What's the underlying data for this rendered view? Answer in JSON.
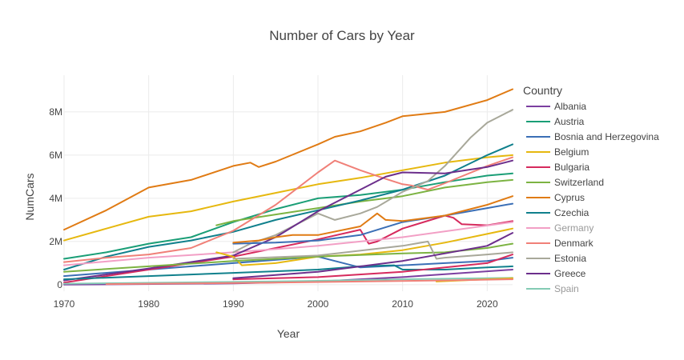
{
  "chart_data": {
    "type": "line",
    "title": "Number of Cars by Year",
    "xlabel": "Year",
    "ylabel": "NumCars",
    "xlim": [
      1970,
      2023
    ],
    "ylim": [
      -300000,
      9700000
    ],
    "x_ticks": [
      {
        "v": 1970,
        "label": "1970"
      },
      {
        "v": 1980,
        "label": "1980"
      },
      {
        "v": 1990,
        "label": "1990"
      },
      {
        "v": 2000,
        "label": "2000"
      },
      {
        "v": 2010,
        "label": "2010"
      },
      {
        "v": 2020,
        "label": "2020"
      }
    ],
    "y_ticks": [
      {
        "v": 0,
        "label": "0"
      },
      {
        "v": 2000000,
        "label": "2M"
      },
      {
        "v": 4000000,
        "label": "4M"
      },
      {
        "v": 6000000,
        "label": "6M"
      },
      {
        "v": 8000000,
        "label": "8M"
      }
    ],
    "grid": true,
    "legend_title": "Country",
    "legend_position": "right",
    "series": [
      {
        "name": "Albania",
        "color": "#7b3fa0",
        "in_legend": true,
        "dimmed": false,
        "x": [
          1970,
          1990,
          2000,
          2010,
          2023
        ],
        "y": [
          5000,
          60000,
          150000,
          350000,
          700000
        ]
      },
      {
        "name": "Austria",
        "color": "#1a9e76",
        "in_legend": true,
        "dimmed": false,
        "x": [
          1970,
          1975,
          1980,
          1985,
          1990,
          1995,
          2000,
          2005,
          2010,
          2015,
          2020,
          2023
        ],
        "y": [
          1200000,
          1500000,
          1900000,
          2200000,
          2900000,
          3500000,
          4000000,
          4150000,
          4400000,
          4750000,
          5050000,
          5150000
        ]
      },
      {
        "name": "Bosnia and Herzegovina",
        "color": "#3b6fb6",
        "in_legend": true,
        "dimmed": false,
        "x": [
          1970,
          1980,
          1990,
          2000,
          2005,
          2010,
          2015,
          2020,
          2023
        ],
        "y": [
          400000,
          700000,
          1000000,
          1300000,
          800000,
          900000,
          1000000,
          1100000,
          1250000
        ]
      },
      {
        "name": "Belgium",
        "color": "#e6b80f",
        "in_legend": true,
        "dimmed": false,
        "x": [
          1970,
          1975,
          1980,
          1985,
          1990,
          1995,
          2000,
          2005,
          2010,
          2015,
          2020,
          2023
        ],
        "y": [
          2050000,
          2600000,
          3150000,
          3400000,
          3850000,
          4250000,
          4650000,
          4950000,
          5300000,
          5650000,
          5900000,
          6000000
        ]
      },
      {
        "name": "Bulgaria",
        "color": "#d62a5d",
        "in_legend": true,
        "dimmed": false,
        "x": [
          1970,
          1980,
          1990,
          1995,
          2000,
          2005,
          2006,
          2007,
          2010,
          2015,
          2016,
          2017,
          2020,
          2023
        ],
        "y": [
          100000,
          700000,
          1300000,
          1700000,
          2100000,
          2550000,
          1900000,
          2000000,
          2600000,
          3200000,
          3100000,
          2800000,
          2750000,
          2950000
        ]
      },
      {
        "name": "Switzerland",
        "color": "#7cb342",
        "in_legend": true,
        "dimmed": false,
        "x": [
          1988,
          1990,
          1995,
          2000,
          2005,
          2010,
          2015,
          2020,
          2023
        ],
        "y": [
          2750000,
          2950000,
          3250000,
          3550000,
          3850000,
          4100000,
          4500000,
          4750000,
          4850000
        ]
      },
      {
        "name": "Cyprus",
        "color": "#e07b14",
        "in_legend": true,
        "dimmed": false,
        "x": [
          1970,
          1975,
          1980,
          1985,
          1990,
          1992,
          1993,
          1995,
          2000,
          2002,
          2005,
          2008,
          2010,
          2015,
          2020,
          2023
        ],
        "y": [
          2550000,
          3450000,
          4500000,
          4850000,
          5500000,
          5650000,
          5450000,
          5700000,
          6500000,
          6850000,
          7100000,
          7500000,
          7800000,
          8000000,
          8550000,
          9050000
        ]
      },
      {
        "name": "Czechia",
        "color": "#10808c",
        "in_legend": true,
        "dimmed": false,
        "x": [
          1970,
          1975,
          1980,
          1985,
          1990,
          1995,
          2000,
          2005,
          2010,
          2015,
          2020,
          2023
        ],
        "y": [
          700000,
          1300000,
          1750000,
          2050000,
          2450000,
          3000000,
          3450000,
          3900000,
          4400000,
          5050000,
          6000000,
          6500000
        ]
      },
      {
        "name": "Germany",
        "color": "#f29fc5",
        "in_legend": true,
        "dimmed": true,
        "x": [
          1970,
          1980,
          1990,
          2000,
          2010,
          2023
        ],
        "y": [
          900000,
          1250000,
          1500000,
          1800000,
          2200000,
          2900000
        ]
      },
      {
        "name": "Denmark",
        "color": "#f08078",
        "in_legend": true,
        "dimmed": false,
        "x": [
          1970,
          1975,
          1980,
          1985,
          1990,
          1995,
          2000,
          2002,
          2005,
          2008,
          2010,
          2011,
          2013,
          2015,
          2020,
          2023
        ],
        "y": [
          1050000,
          1250000,
          1400000,
          1700000,
          2500000,
          3700000,
          5200000,
          5750000,
          5300000,
          4900000,
          4650000,
          4600000,
          4400000,
          4700000,
          5500000,
          5900000
        ]
      },
      {
        "name": "Estonia",
        "color": "#a8a89a",
        "in_legend": true,
        "dimmed": false,
        "x": [
          1990,
          1992,
          1995,
          2000,
          2002,
          2005,
          2007,
          2010,
          2013,
          2015,
          2018,
          2020,
          2023
        ],
        "y": [
          1500000,
          1900000,
          2300000,
          3300000,
          3000000,
          3300000,
          3600000,
          4300000,
          4800000,
          5500000,
          6800000,
          7500000,
          8100000
        ]
      },
      {
        "name": "Greece",
        "color": "#6c2f8c",
        "in_legend": true,
        "dimmed": false,
        "x": [
          1970,
          1980,
          1990,
          1995,
          2000,
          2005,
          2008,
          2010,
          2015,
          2020,
          2023
        ],
        "y": [
          200000,
          750000,
          1350000,
          2200000,
          3400000,
          4400000,
          5000000,
          5200000,
          5150000,
          5450000,
          5750000
        ]
      },
      {
        "name": "Spain",
        "color": "#84cbb4",
        "in_legend": true,
        "dimmed": true,
        "x": [
          1970,
          1980,
          1990,
          2000,
          2010,
          2023
        ],
        "y": [
          50000,
          90000,
          130000,
          180000,
          250000,
          320000
        ]
      },
      {
        "name": "",
        "color": "#3b6fb6",
        "in_legend": false,
        "dimmed": false,
        "x": [
          1990,
          1995,
          2000,
          2005,
          2010,
          2015,
          2020,
          2023
        ],
        "y": [
          1900000,
          1950000,
          2050000,
          2300000,
          2900000,
          3200000,
          3550000,
          3750000
        ]
      },
      {
        "name": "",
        "color": "#e07b14",
        "in_legend": false,
        "dimmed": false,
        "x": [
          1990,
          1993,
          1995,
          1997,
          2000,
          2005,
          2007,
          2008,
          2010,
          2015,
          2020,
          2023
        ],
        "y": [
          1950000,
          2050000,
          2200000,
          2300000,
          2300000,
          2700000,
          3300000,
          3000000,
          2950000,
          3200000,
          3700000,
          4100000
        ]
      },
      {
        "name": "",
        "color": "#e6b80f",
        "in_legend": false,
        "dimmed": false,
        "x": [
          1988,
          1990,
          1991,
          1995,
          2000,
          2005,
          2010,
          2015,
          2020,
          2023
        ],
        "y": [
          1500000,
          1300000,
          900000,
          1000000,
          1300000,
          1400000,
          1600000,
          1950000,
          2350000,
          2600000
        ]
      },
      {
        "name": "",
        "color": "#7cb342",
        "in_legend": false,
        "dimmed": false,
        "x": [
          1970,
          1980,
          1990,
          2000,
          2010,
          2015,
          2020,
          2023
        ],
        "y": [
          600000,
          850000,
          1100000,
          1300000,
          1450000,
          1500000,
          1700000,
          1900000
        ]
      },
      {
        "name": "",
        "color": "#10808c",
        "in_legend": false,
        "dimmed": false,
        "x": [
          1970,
          1980,
          1990,
          2000,
          2005,
          2009,
          2010,
          2015,
          2020,
          2023
        ],
        "y": [
          250000,
          400000,
          550000,
          700000,
          850000,
          900000,
          700000,
          700000,
          800000,
          850000
        ]
      },
      {
        "name": "",
        "color": "#a8a89a",
        "in_legend": false,
        "dimmed": false,
        "x": [
          1990,
          2000,
          2010,
          2013,
          2014,
          2015,
          2020,
          2023
        ],
        "y": [
          1200000,
          1350000,
          1800000,
          2000000,
          1200000,
          1250000,
          1400000,
          1500000
        ]
      },
      {
        "name": "",
        "color": "#e6b80f",
        "in_legend": false,
        "dimmed": false,
        "x": [
          2014,
          2020,
          2023
        ],
        "y": [
          150000,
          250000,
          300000
        ]
      },
      {
        "name": "",
        "color": "#d62a5d",
        "in_legend": false,
        "dimmed": false,
        "x": [
          1990,
          2000,
          2010,
          2020,
          2023
        ],
        "y": [
          250000,
          350000,
          600000,
          1000000,
          1400000
        ]
      },
      {
        "name": "",
        "color": "#6c2f8c",
        "in_legend": false,
        "dimmed": false,
        "x": [
          1990,
          2000,
          2010,
          2020,
          2023
        ],
        "y": [
          300000,
          600000,
          1100000,
          1800000,
          2400000
        ]
      },
      {
        "name": "",
        "color": "#f08078",
        "in_legend": false,
        "dimmed": false,
        "x": [
          1975,
          1985,
          1995,
          2005,
          2015,
          2023
        ],
        "y": [
          30000,
          60000,
          100000,
          150000,
          200000,
          250000
        ]
      }
    ]
  }
}
